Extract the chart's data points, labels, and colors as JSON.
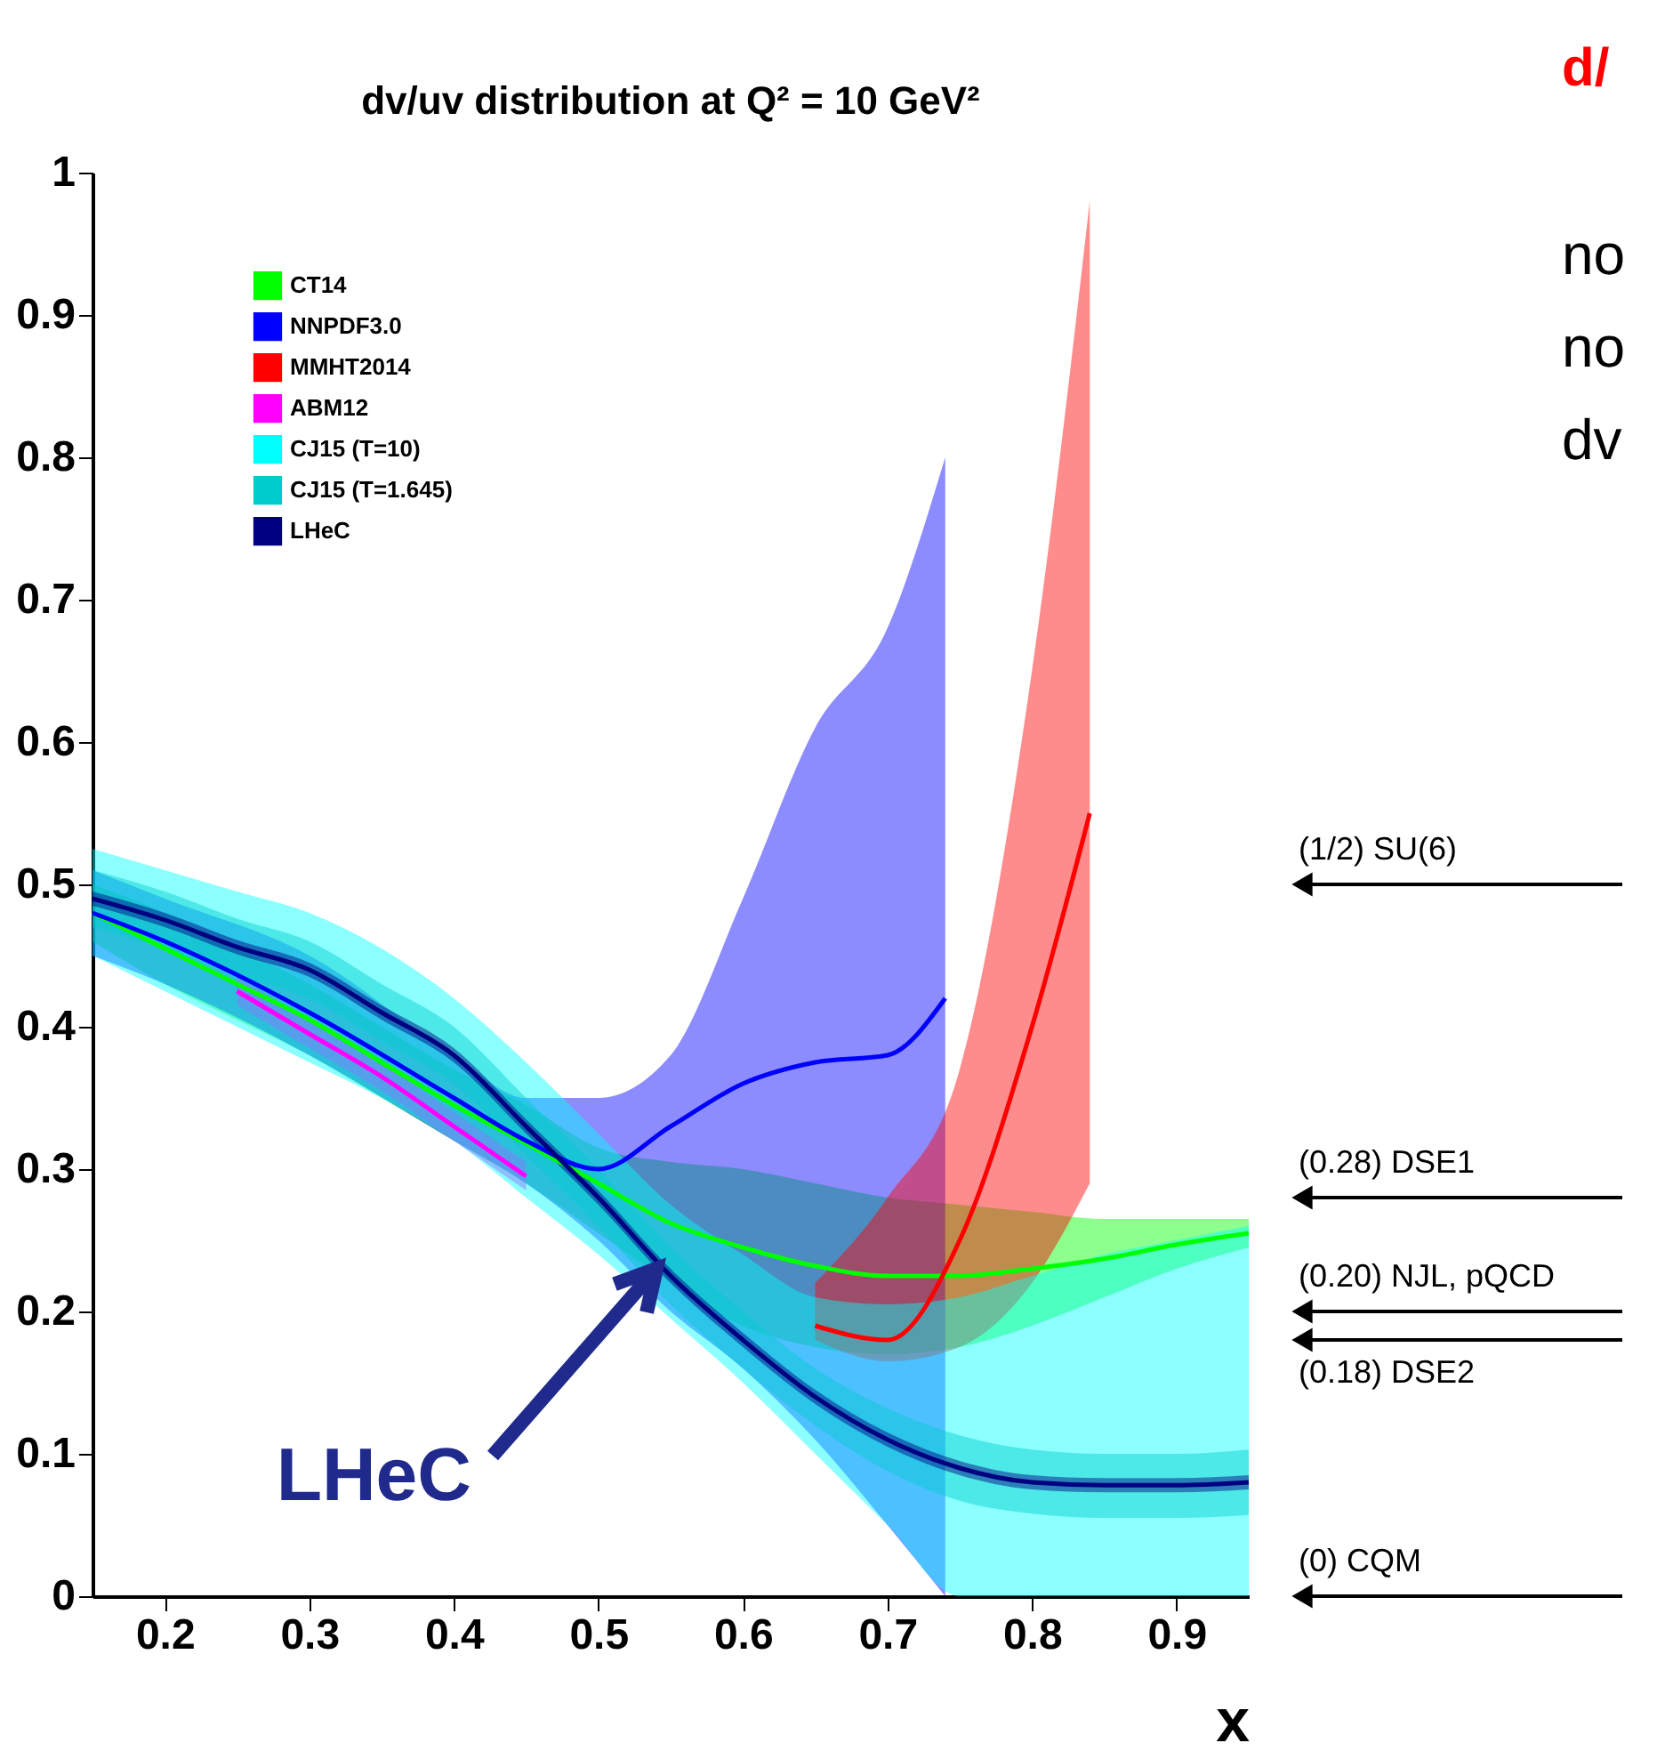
{
  "chart_data": {
    "type": "line",
    "title": "dv/uv distribution at Q² = 10 GeV²",
    "xlabel": "x",
    "x": [
      0.15,
      0.2,
      0.25,
      0.3,
      0.35,
      0.4,
      0.45,
      0.5,
      0.55,
      0.6,
      0.65,
      0.7,
      0.75,
      0.8,
      0.85,
      0.9,
      0.95
    ],
    "xlim": [
      0.15,
      0.95
    ],
    "ylim": [
      0,
      1
    ],
    "xticks": [
      0.2,
      0.3,
      0.4,
      0.5,
      0.6,
      0.7,
      0.8,
      0.9
    ],
    "yticks": [
      0,
      0.1,
      0.2,
      0.3,
      0.4,
      0.5,
      0.6,
      0.7,
      0.8,
      0.9,
      1
    ],
    "grid": false,
    "legend": "top left",
    "marker": "none",
    "line_style": "solid",
    "series": [
      {
        "name": "CT14",
        "color": "#00ff00",
        "values": [
          0.48,
          0.455,
          0.43,
          0.405,
          0.375,
          0.345,
          0.318,
          0.29,
          0.262,
          0.245,
          0.232,
          0.225,
          0.225,
          0.23,
          0.237,
          0.247,
          0.255
        ],
        "lower": [
          0.46,
          0.43,
          0.405,
          0.38,
          0.35,
          0.32,
          0.29,
          0.255,
          0.22,
          0.19,
          0.175,
          0.17,
          0.175,
          0.19,
          0.21,
          0.23,
          0.245
        ],
        "upper": [
          0.5,
          0.48,
          0.455,
          0.43,
          0.4,
          0.37,
          0.345,
          0.315,
          0.305,
          0.3,
          0.29,
          0.28,
          0.275,
          0.27,
          0.265,
          0.265,
          0.265
        ]
      },
      {
        "name": "NNPDF3.0",
        "color": "#0000ff",
        "x": [
          0.15,
          0.2,
          0.3,
          0.4,
          0.45,
          0.5,
          0.55,
          0.6,
          0.65,
          0.7,
          0.74
        ],
        "values": [
          0.48,
          0.46,
          0.41,
          0.35,
          0.32,
          0.3,
          0.33,
          0.36,
          0.375,
          0.38,
          0.42
        ],
        "lower": [
          0.45,
          0.43,
          0.38,
          0.32,
          0.29,
          0.25,
          0.2,
          0.16,
          0.11,
          0.05,
          0
        ],
        "upper": [
          0.51,
          0.49,
          0.45,
          0.38,
          0.35,
          0.35,
          0.38,
          0.49,
          0.61,
          0.68,
          0.8
        ]
      },
      {
        "name": "MMHT2014",
        "color": "#ff0000",
        "x": [
          0.65,
          0.7,
          0.75,
          0.8,
          0.84
        ],
        "values": [
          0.19,
          0.18,
          0.25,
          0.4,
          0.55
        ],
        "lower": [
          0.18,
          0.165,
          0.175,
          0.22,
          0.29
        ],
        "upper": [
          0.22,
          0.28,
          0.37,
          0.65,
          0.98
        ]
      },
      {
        "name": "ABM12",
        "color": "#ff00ff",
        "x": [
          0.25,
          0.3,
          0.35,
          0.4,
          0.45
        ],
        "values": [
          0.425,
          0.395,
          0.365,
          0.33,
          0.295
        ],
        "lower": [
          0.415,
          0.385,
          0.355,
          0.32,
          0.285
        ],
        "upper": [
          0.435,
          0.405,
          0.375,
          0.34,
          0.305
        ]
      },
      {
        "name": "CJ15 (T=10)",
        "color": "#00ffff",
        "values": [
          null,
          null,
          null,
          null,
          null,
          null,
          null,
          null,
          null,
          null,
          null,
          null,
          null,
          null,
          null,
          null,
          null
        ],
        "lower": [
          0.45,
          0.425,
          0.4,
          0.375,
          0.35,
          0.32,
          0.28,
          0.24,
          0.195,
          0.15,
          0.1,
          0.05,
          0,
          0,
          0,
          0,
          0
        ],
        "upper": [
          0.525,
          0.51,
          0.495,
          0.48,
          0.455,
          0.42,
          0.375,
          0.325,
          0.275,
          0.24,
          0.21,
          0.205,
          0.21,
          0.225,
          0.24,
          0.25,
          0.26
        ]
      },
      {
        "name": "CJ15 (T=1.645)",
        "color": "#00cccc",
        "values": [
          null,
          null,
          null,
          null,
          null,
          null,
          null,
          null,
          null,
          null,
          null,
          null,
          null,
          null,
          null,
          null,
          null
        ],
        "lower": [
          0.47,
          0.455,
          0.436,
          0.42,
          0.39,
          0.36,
          0.31,
          0.26,
          0.205,
          0.16,
          0.12,
          0.088,
          0.067,
          0.058,
          0.055,
          0.055,
          0.057
        ],
        "upper": [
          0.51,
          0.495,
          0.476,
          0.46,
          0.43,
          0.4,
          0.35,
          0.3,
          0.245,
          0.2,
          0.16,
          0.132,
          0.113,
          0.103,
          0.1,
          0.1,
          0.103
        ]
      },
      {
        "name": "LHeC",
        "color": "#000080",
        "values": [
          0.49,
          0.475,
          0.456,
          0.44,
          0.41,
          0.38,
          0.33,
          0.28,
          0.225,
          0.18,
          0.14,
          0.11,
          0.09,
          0.08,
          0.078,
          0.078,
          0.08
        ],
        "lower": [
          0.485,
          0.47,
          0.451,
          0.435,
          0.405,
          0.375,
          0.325,
          0.275,
          0.22,
          0.175,
          0.135,
          0.105,
          0.085,
          0.075,
          0.073,
          0.073,
          0.075
        ],
        "upper": [
          0.495,
          0.48,
          0.461,
          0.445,
          0.415,
          0.385,
          0.335,
          0.285,
          0.23,
          0.185,
          0.145,
          0.115,
          0.095,
          0.085,
          0.083,
          0.083,
          0.085
        ]
      }
    ],
    "ref_lines": [
      {
        "axis": "y",
        "value": 0.5,
        "label": "(1/2) SU(6)"
      },
      {
        "axis": "y",
        "value": 0.28,
        "label": "(0.28) DSE1"
      },
      {
        "axis": "y",
        "value": 0.2,
        "label": "(0.20) NJL, pQCD"
      },
      {
        "axis": "y",
        "value": 0.18,
        "label": "(0.18) DSE2"
      },
      {
        "axis": "y",
        "value": 0,
        "label": "(0) CQM"
      }
    ],
    "annotations": [
      "LHeC",
      "d/",
      "no",
      "no",
      "dv"
    ]
  }
}
